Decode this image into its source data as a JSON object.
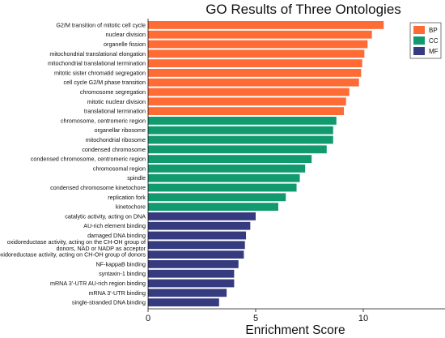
{
  "chart_data": {
    "type": "bar",
    "orientation": "horizontal",
    "title": "GO Results of Three Ontologies",
    "xlabel": "Enrichment Score",
    "ylabel": "",
    "xlim": [
      0,
      14
    ],
    "xticks": [
      "0",
      "5",
      "10"
    ],
    "grid": false,
    "legend_position": "top-right",
    "colors": {
      "BP": "#ff6b35",
      "CC": "#119a6d",
      "MF": "#353b7e"
    },
    "series": [
      {
        "name": "BP",
        "categories": [
          "G2/M transition of mitotic cell cycle",
          "nuclear division",
          "organelle fission",
          "mitochondrial translational elongation",
          "mitochondrial translational termination",
          "mitotic sister chromatid segregation",
          "cell cycle G2/M phase transition",
          "chromosome segregation",
          "mitotic nuclear division",
          "translational termination"
        ],
        "values": [
          10.95,
          10.4,
          10.2,
          10.05,
          9.95,
          9.9,
          9.8,
          9.35,
          9.2,
          9.1
        ]
      },
      {
        "name": "CC",
        "categories": [
          "chromosome, centromeric region",
          "organellar ribosome",
          "mitochondrial ribosome",
          "condensed chromosome",
          "condensed chromosome, centromeric region",
          "chromosomal region",
          "spindle",
          "condensed chromosome kinetochore",
          "replication fork",
          "kinetochore"
        ],
        "values": [
          8.75,
          8.6,
          8.6,
          8.3,
          7.6,
          7.3,
          7.05,
          6.9,
          6.4,
          6.05
        ]
      },
      {
        "name": "MF",
        "categories": [
          "catalytic activity, acting on DNA",
          "AU-rich element binding",
          "damaged DNA binding",
          "oxidoreductase activity, acting on the CH-OH group of\ndonors, NAD or NADP as acceptor",
          "oxidoreductase activity, acting on CH-OH group of donors",
          "NF-kappaB binding",
          "syntaxin-1 binding",
          "mRNA 3'-UTR AU-rich region binding",
          "mRNA 3'-UTR binding",
          "single-stranded DNA binding"
        ],
        "values": [
          5.0,
          4.75,
          4.55,
          4.5,
          4.45,
          4.2,
          4.0,
          4.0,
          3.65,
          3.3
        ]
      }
    ]
  }
}
